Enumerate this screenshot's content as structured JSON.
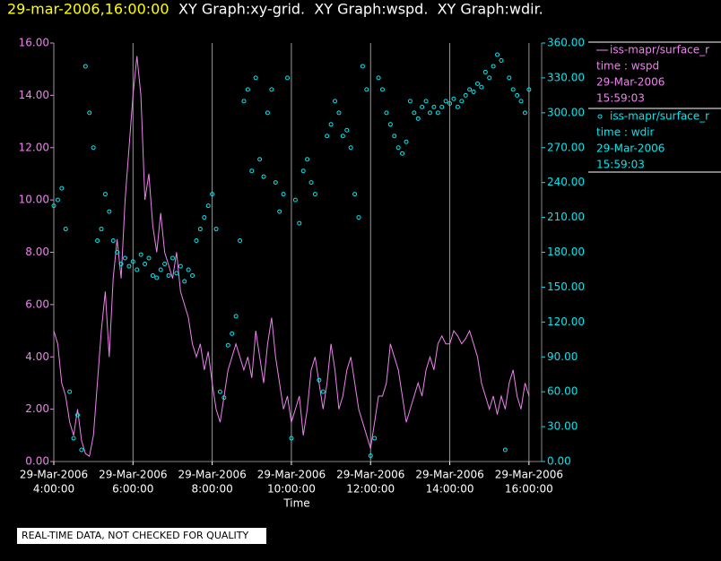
{
  "chart_data": {
    "type": "scatter",
    "title_time": "29-mar-2006,16:00:00",
    "title_graphs": "XY Graph:xy-grid.  XY Graph:wspd.  XY Graph:wdir.",
    "xlabel": "Time",
    "footnote": "REAL-TIME DATA, NOT CHECKED FOR QUALITY",
    "xlim": [
      4,
      16.32
    ],
    "xticks": [
      {
        "value": 4,
        "label": [
          "29-Mar-2006",
          "4:00:00"
        ]
      },
      {
        "value": 6,
        "label": [
          "29-Mar-2006",
          "6:00:00"
        ]
      },
      {
        "value": 8,
        "label": [
          "29-Mar-2006",
          "8:00:00"
        ]
      },
      {
        "value": 10,
        "label": [
          "29-Mar-2006",
          "10:00:00"
        ]
      },
      {
        "value": 12,
        "label": [
          "29-Mar-2006",
          "12:00:00"
        ]
      },
      {
        "value": 14,
        "label": [
          "29-Mar-2006",
          "14:00:00"
        ]
      },
      {
        "value": 16,
        "label": [
          "29-Mar-2006",
          "16:00:00"
        ]
      }
    ],
    "ylim": [
      0,
      16
    ],
    "yticks": [
      {
        "value": 0,
        "label": "0.00"
      },
      {
        "value": 2,
        "label": "2.00"
      },
      {
        "value": 4,
        "label": "4.00"
      },
      {
        "value": 6,
        "label": "6.00"
      },
      {
        "value": 8,
        "label": "8.00"
      },
      {
        "value": 10,
        "label": "10.00"
      },
      {
        "value": 12,
        "label": "12.00"
      },
      {
        "value": 14,
        "label": "14.00"
      },
      {
        "value": 16,
        "label": "16.00"
      }
    ],
    "y2lim": [
      0,
      360
    ],
    "y2ticks": [
      {
        "value": 0,
        "label": "0.00"
      },
      {
        "value": 30,
        "label": "30.00"
      },
      {
        "value": 60,
        "label": "60.00"
      },
      {
        "value": 90,
        "label": "90.00"
      },
      {
        "value": 120,
        "label": "120.00"
      },
      {
        "value": 150,
        "label": "150.00"
      },
      {
        "value": 180,
        "label": "180.00"
      },
      {
        "value": 210,
        "label": "210.00"
      },
      {
        "value": 240,
        "label": "240.00"
      },
      {
        "value": 270,
        "label": "270.00"
      },
      {
        "value": 300,
        "label": "300.00"
      },
      {
        "value": 330,
        "label": "330.00"
      },
      {
        "value": 360,
        "label": "360.00"
      }
    ],
    "grid": true,
    "x": [
      4.0,
      4.1,
      4.2,
      4.3,
      4.4,
      4.5,
      4.6,
      4.7,
      4.8,
      4.9,
      5.0,
      5.1,
      5.2,
      5.3,
      5.4,
      5.5,
      5.6,
      5.7,
      5.8,
      5.9,
      6.0,
      6.1,
      6.2,
      6.3,
      6.4,
      6.5,
      6.6,
      6.7,
      6.8,
      6.9,
      7.0,
      7.1,
      7.2,
      7.3,
      7.4,
      7.5,
      7.6,
      7.7,
      7.8,
      7.9,
      8.0,
      8.1,
      8.2,
      8.3,
      8.4,
      8.5,
      8.6,
      8.7,
      8.8,
      8.9,
      9.0,
      9.1,
      9.2,
      9.3,
      9.4,
      9.5,
      9.6,
      9.7,
      9.8,
      9.9,
      10.0,
      10.1,
      10.2,
      10.3,
      10.4,
      10.5,
      10.6,
      10.7,
      10.8,
      10.9,
      11.0,
      11.1,
      11.2,
      11.3,
      11.4,
      11.5,
      11.6,
      11.7,
      11.8,
      11.9,
      12.0,
      12.1,
      12.2,
      12.3,
      12.4,
      12.5,
      12.6,
      12.7,
      12.8,
      12.9,
      13.0,
      13.1,
      13.2,
      13.3,
      13.4,
      13.5,
      13.6,
      13.7,
      13.8,
      13.9,
      14.0,
      14.1,
      14.2,
      14.3,
      14.4,
      14.5,
      14.6,
      14.7,
      14.8,
      14.9,
      15.0,
      15.1,
      15.2,
      15.3,
      15.4,
      15.5,
      15.6,
      15.7,
      15.8,
      15.9,
      16.0
    ],
    "series": [
      {
        "name": "iss-mapr/surface_r",
        "legend_lines": [
          "time : wspd",
          "29-Mar-2006",
          "15:59:03"
        ],
        "kind": "line",
        "color": "#ee82ee",
        "values": [
          5.0,
          4.5,
          3.0,
          2.5,
          1.5,
          1.0,
          2.0,
          0.8,
          0.3,
          0.2,
          1.0,
          3.0,
          5.0,
          6.5,
          4.0,
          7.0,
          8.5,
          7.0,
          10.0,
          12.0,
          14.0,
          15.5,
          14.0,
          10.0,
          11.0,
          9.0,
          8.0,
          9.5,
          8.0,
          7.5,
          7.0,
          8.0,
          6.5,
          6.0,
          5.5,
          4.5,
          4.0,
          4.5,
          3.5,
          4.2,
          3.0,
          2.0,
          1.5,
          2.5,
          3.5,
          4.0,
          4.5,
          4.0,
          3.5,
          4.0,
          3.2,
          5.0,
          4.0,
          3.0,
          4.5,
          5.5,
          4.0,
          3.0,
          2.0,
          2.5,
          1.5,
          2.0,
          2.5,
          1.0,
          2.0,
          3.5,
          4.0,
          3.0,
          2.0,
          3.0,
          4.5,
          3.5,
          2.0,
          2.5,
          3.5,
          4.0,
          3.0,
          2.0,
          1.5,
          1.0,
          0.5,
          1.5,
          2.5,
          2.5,
          3.0,
          4.5,
          4.0,
          3.5,
          2.5,
          1.5,
          2.0,
          2.5,
          3.0,
          2.5,
          3.5,
          4.0,
          3.5,
          4.5,
          4.8,
          4.5,
          4.5,
          5.0,
          4.8,
          4.5,
          4.7,
          5.0,
          4.5,
          4.0,
          3.0,
          2.5,
          2.0,
          2.5,
          1.8,
          2.5,
          2.0,
          3.0,
          3.5,
          2.5,
          2.0,
          3.0,
          2.5
        ]
      },
      {
        "name": "iss-mapr/surface_r",
        "legend_lines": [
          "time : wdir",
          "29-Mar-2006",
          "15:59:03"
        ],
        "kind": "scatter",
        "axis": "y2",
        "color": "#00e8f0",
        "values": [
          220,
          225,
          235,
          200,
          60,
          20,
          40,
          10,
          340,
          300,
          270,
          190,
          200,
          230,
          215,
          190,
          180,
          170,
          175,
          168,
          172,
          165,
          178,
          170,
          175,
          160,
          158,
          165,
          170,
          160,
          175,
          162,
          168,
          155,
          165,
          160,
          190,
          200,
          210,
          220,
          230,
          200,
          60,
          55,
          100,
          110,
          125,
          190,
          310,
          320,
          250,
          330,
          260,
          245,
          300,
          320,
          240,
          215,
          230,
          330,
          20,
          225,
          205,
          250,
          260,
          240,
          230,
          70,
          60,
          280,
          290,
          310,
          300,
          280,
          285,
          270,
          230,
          210,
          340,
          320,
          5,
          20,
          330,
          320,
          300,
          290,
          280,
          270,
          265,
          275,
          310,
          300,
          295,
          305,
          310,
          300,
          305,
          300,
          305,
          310,
          308,
          312,
          305,
          310,
          315,
          320,
          318,
          325,
          322,
          335,
          330,
          340,
          350,
          345,
          10,
          330,
          320,
          315,
          310,
          300,
          320
        ]
      }
    ]
  }
}
